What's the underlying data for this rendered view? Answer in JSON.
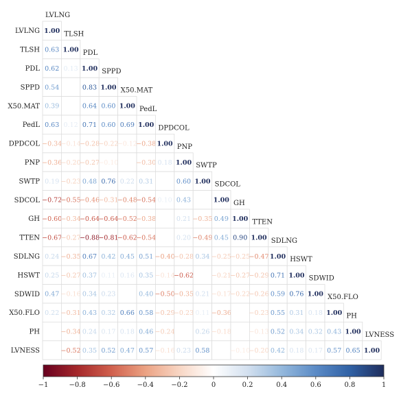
{
  "chart_data": {
    "type": "heatmap",
    "subtype": "lower-triangular correlation matrix",
    "variables": [
      "LVLNG",
      "TLSH",
      "PDL",
      "SPPD",
      "X50.MAT",
      "PedL",
      "DPDCOL",
      "PNP",
      "SWTP",
      "SDCOL",
      "GH",
      "TTEN",
      "SDLNG",
      "HSWT",
      "SDWID",
      "X50.FLO",
      "PH",
      "LVNESS"
    ],
    "matrix": [
      [
        1.0
      ],
      [
        0.63,
        1.0
      ],
      [
        0.62,
        0.13,
        1.0
      ],
      [
        0.54,
        0.0,
        0.83,
        1.0
      ],
      [
        0.39,
        0.02,
        0.64,
        0.6,
        1.0
      ],
      [
        0.63,
        0.12,
        0.71,
        0.6,
        0.69,
        1.0
      ],
      [
        -0.34,
        -0.14,
        -0.28,
        -0.22,
        -0.12,
        -0.38,
        1.0
      ],
      [
        -0.36,
        -0.2,
        -0.27,
        -0.1,
        -0.25,
        -0.3,
        0.18,
        1.0
      ],
      [
        0.19,
        -0.23,
        0.48,
        0.76,
        0.22,
        0.31,
        0.0,
        0.6,
        1.0
      ],
      [
        -0.72,
        -0.55,
        -0.46,
        -0.31,
        -0.48,
        -0.54,
        0.1,
        0.43,
        0.0,
        1.0
      ],
      [
        -0.6,
        -0.34,
        -0.64,
        -0.64,
        -0.52,
        -0.38,
        -0.11,
        0.21,
        -0.35,
        0.49,
        1.0
      ],
      [
        -0.67,
        -0.27,
        -0.88,
        -0.81,
        -0.62,
        -0.54,
        0.13,
        0.2,
        -0.49,
        0.45,
        0.9,
        1.0
      ],
      [
        0.24,
        -0.35,
        0.67,
        0.42,
        0.45,
        0.51,
        -0.4,
        -0.28,
        0.34,
        -0.25,
        -0.25,
        -0.47,
        1.0
      ],
      [
        0.25,
        -0.27,
        0.37,
        0.11,
        0.16,
        0.35,
        -0.14,
        -0.62,
        0.0,
        -0.21,
        -0.27,
        -0.29,
        0.71,
        1.0
      ],
      [
        0.47,
        -0.16,
        0.34,
        0.23,
        0.0,
        0.4,
        -0.5,
        -0.35,
        0.21,
        -0.17,
        -0.22,
        -0.26,
        0.59,
        0.76,
        1.0
      ],
      [
        0.22,
        -0.31,
        0.43,
        0.32,
        0.66,
        0.58,
        -0.29,
        -0.23,
        0.11,
        -0.36,
        0.0,
        -0.23,
        0.55,
        0.31,
        0.18,
        1.0
      ],
      [
        0.0,
        -0.34,
        0.24,
        0.17,
        0.18,
        0.46,
        -0.24,
        0.0,
        0.26,
        -0.18,
        0.0,
        -0.13,
        0.52,
        0.34,
        0.32,
        0.43,
        1.0
      ],
      [
        0.0,
        -0.52,
        0.35,
        0.52,
        0.47,
        0.57,
        -0.16,
        0.23,
        0.58,
        0.0,
        -0.1,
        -0.2,
        0.42,
        0.18,
        0.17,
        0.57,
        0.65,
        1.0
      ]
    ],
    "blank_cells": [
      [
        4,
        1
      ],
      [
        7,
        4
      ],
      [
        8,
        6
      ],
      [
        9,
        8
      ],
      [
        10,
        6
      ],
      [
        10,
        12
      ],
      [
        11,
        6
      ],
      [
        13,
        8
      ],
      [
        14,
        4
      ],
      [
        15,
        10
      ],
      [
        16,
        0
      ],
      [
        16,
        7
      ],
      [
        16,
        10
      ],
      [
        17,
        0
      ],
      [
        17,
        9
      ]
    ],
    "colorbar": {
      "min": -1,
      "max": 1,
      "ticks": [
        -1,
        -0.8,
        -0.6,
        -0.4,
        -0.2,
        0,
        0.2,
        0.4,
        0.6,
        0.8,
        1
      ],
      "tick_labels": [
        "−1",
        "−0.8",
        "−0.6",
        "−0.4",
        "−0.2",
        "0",
        "0.2",
        "0.4",
        "0.6",
        "0.8",
        "1"
      ]
    },
    "colors": {
      "negative": "#67001f",
      "neutral": "#ffffff",
      "positive": "#1f2d5c"
    },
    "grid": true,
    "legend": "bottom colorbar"
  }
}
